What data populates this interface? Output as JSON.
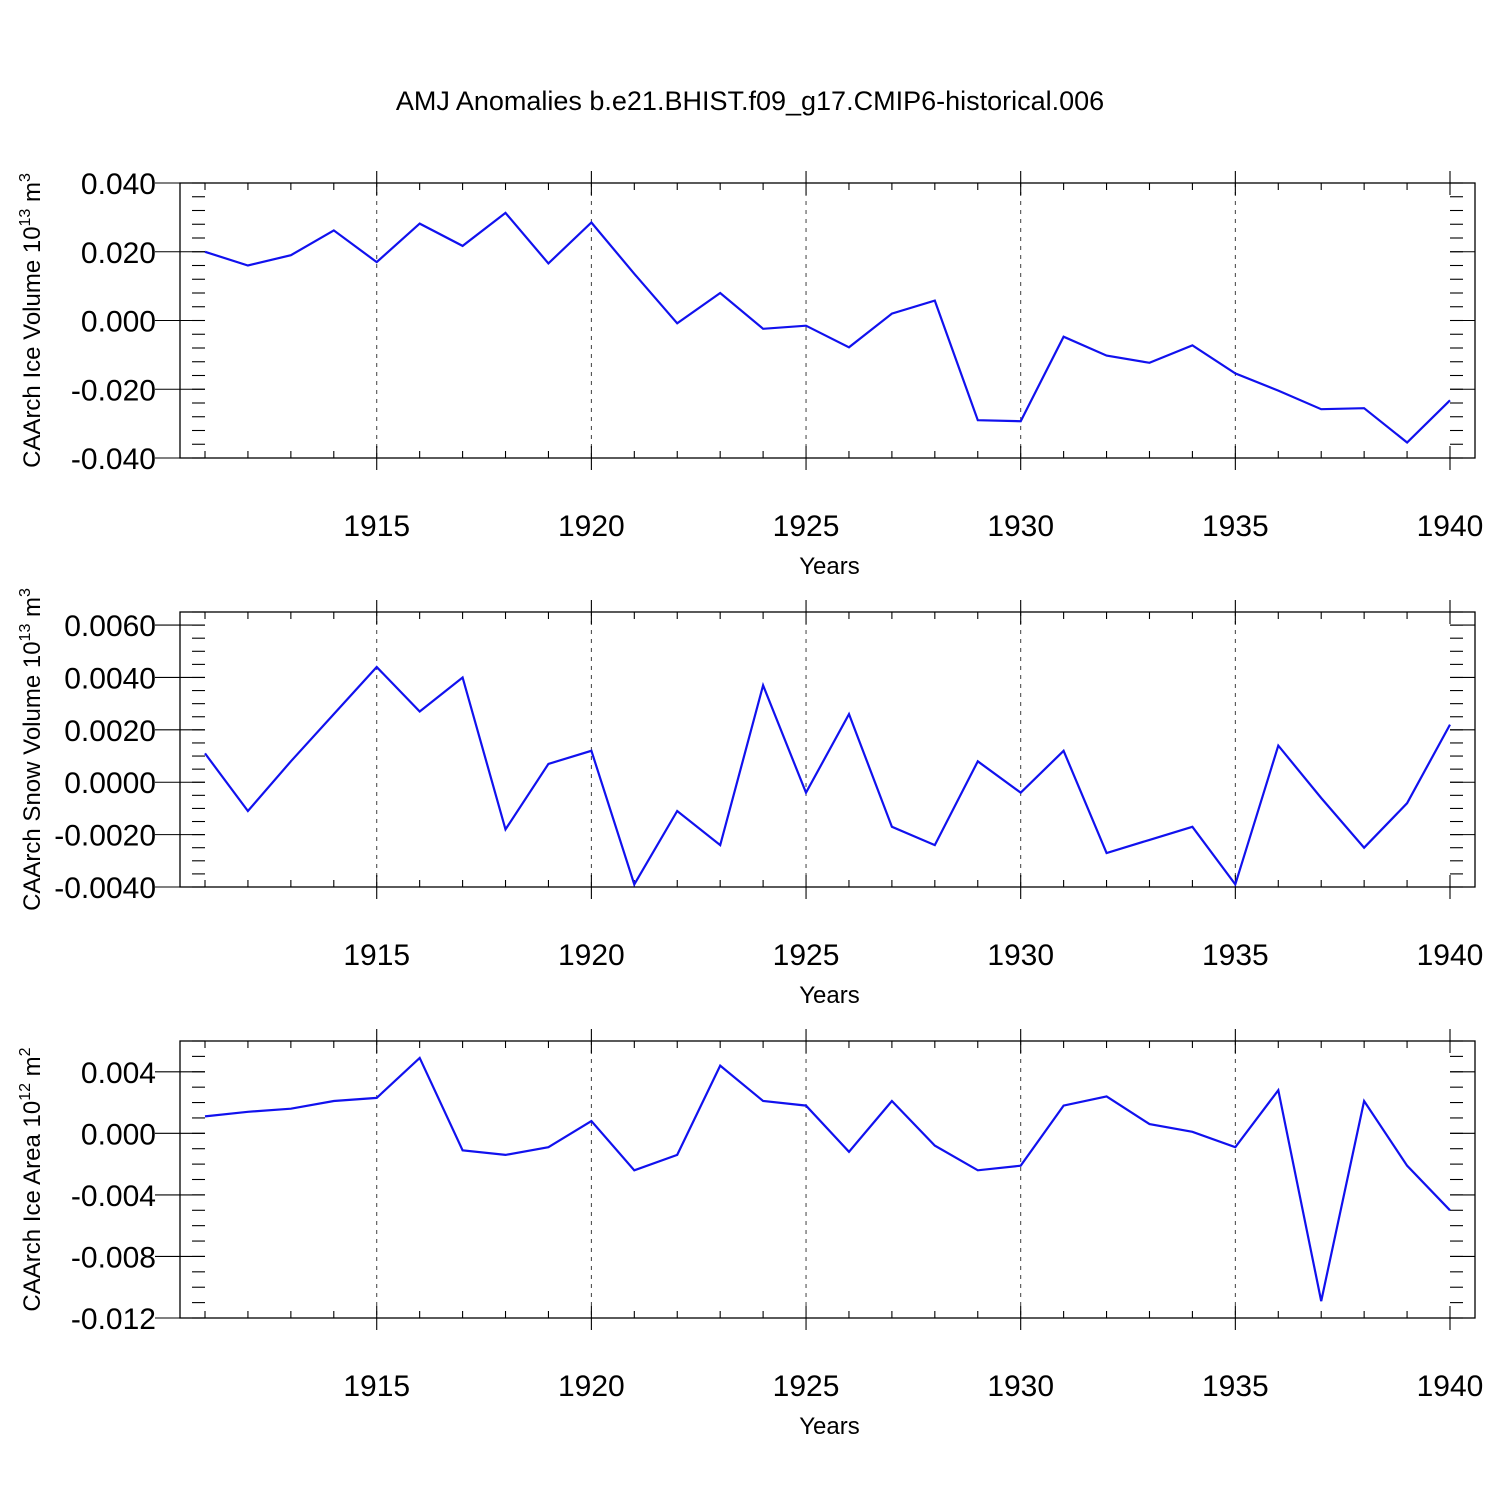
{
  "chart_data": {
    "title": "AMJ Anomalies b.e21.BHIST.f09_g17.CMIP6-historical.006",
    "colors": {
      "line": "#1111ee",
      "axes": "#000000",
      "background": "#ffffff"
    },
    "panels": [
      {
        "type": "line",
        "ylabel": "CAArch Ice Volume 10",
        "ylabel_exp": "13",
        "ylabel_unit": " m",
        "ylabel_unit_exp": "3",
        "xlabel": "Years",
        "xlim": [
          1911,
          1940
        ],
        "ylim": [
          -0.04,
          0.04
        ],
        "x_major_ticks": [
          1915,
          1920,
          1925,
          1930,
          1935,
          1940
        ],
        "x_tick_labels": [
          "1915",
          "1920",
          "1925",
          "1930",
          "1935",
          "1940"
        ],
        "y_major_ticks": [
          -0.04,
          -0.02,
          0.0,
          0.02,
          0.04
        ],
        "y_tick_labels": [
          "-0.040",
          "-0.020",
          "0.000",
          "0.020",
          "0.040"
        ],
        "y_minor_step": 0.004,
        "x": [
          1911,
          1912,
          1913,
          1914,
          1915,
          1916,
          1917,
          1918,
          1919,
          1920,
          1921,
          1922,
          1923,
          1924,
          1925,
          1926,
          1927,
          1928,
          1929,
          1930,
          1931,
          1932,
          1933,
          1934,
          1935,
          1936,
          1937,
          1938,
          1939,
          1940
        ],
        "values": [
          0.02,
          0.016,
          0.019,
          0.0262,
          0.017,
          0.0282,
          0.0217,
          0.0313,
          0.0166,
          0.0285,
          0.0136,
          -0.0008,
          0.008,
          -0.0024,
          -0.0015,
          -0.0078,
          0.002,
          0.0058,
          -0.029,
          -0.0293,
          -0.0047,
          -0.0102,
          -0.0123,
          -0.0072,
          -0.0154,
          -0.0204,
          -0.0258,
          -0.0255,
          -0.0355,
          -0.0232
        ]
      },
      {
        "type": "line",
        "ylabel": "CAArch Snow Volume 10",
        "ylabel_exp": "13",
        "ylabel_unit": " m",
        "ylabel_unit_exp": "3",
        "xlabel": "Years",
        "xlim": [
          1911,
          1940
        ],
        "ylim": [
          -0.004,
          0.0065
        ],
        "x_major_ticks": [
          1915,
          1920,
          1925,
          1930,
          1935,
          1940
        ],
        "x_tick_labels": [
          "1915",
          "1920",
          "1925",
          "1930",
          "1935",
          "1940"
        ],
        "y_major_ticks": [
          -0.004,
          -0.002,
          0.0,
          0.002,
          0.004,
          0.006
        ],
        "y_tick_labels": [
          "-0.0040",
          "-0.0020",
          "0.0000",
          "0.0020",
          "0.0040",
          "0.0060"
        ],
        "y_minor_step": 0.0005,
        "x": [
          1911,
          1912,
          1913,
          1914,
          1915,
          1916,
          1917,
          1918,
          1919,
          1920,
          1921,
          1922,
          1923,
          1924,
          1925,
          1926,
          1927,
          1928,
          1929,
          1930,
          1931,
          1932,
          1933,
          1934,
          1935,
          1936,
          1937,
          1938,
          1939,
          1940
        ],
        "values": [
          0.0011,
          -0.0011,
          0.0008,
          0.0026,
          0.0044,
          0.0027,
          0.004,
          -0.0018,
          0.0007,
          0.0012,
          -0.0039,
          -0.0011,
          -0.0024,
          0.0037,
          -0.0004,
          0.0026,
          -0.0017,
          -0.0024,
          0.0008,
          -0.0004,
          0.0012,
          -0.0027,
          -0.0022,
          -0.0017,
          -0.0039,
          0.0014,
          -0.0006,
          -0.0025,
          -0.0008,
          0.0022
        ]
      },
      {
        "type": "line",
        "ylabel": "CAArch Ice Area 10",
        "ylabel_exp": "12",
        "ylabel_unit": " m",
        "ylabel_unit_exp": "2",
        "xlabel": "Years",
        "xlim": [
          1911,
          1940
        ],
        "ylim": [
          -0.012,
          0.006
        ],
        "x_major_ticks": [
          1915,
          1920,
          1925,
          1930,
          1935,
          1940
        ],
        "x_tick_labels": [
          "1915",
          "1920",
          "1925",
          "1930",
          "1935",
          "1940"
        ],
        "y_major_ticks": [
          -0.012,
          -0.008,
          -0.004,
          0.0,
          0.004
        ],
        "y_tick_labels": [
          "-0.012",
          "-0.008",
          "-0.004",
          "0.000",
          "0.004"
        ],
        "y_minor_step": 0.001,
        "x": [
          1911,
          1912,
          1913,
          1914,
          1915,
          1916,
          1917,
          1918,
          1919,
          1920,
          1921,
          1922,
          1923,
          1924,
          1925,
          1926,
          1927,
          1928,
          1929,
          1930,
          1931,
          1932,
          1933,
          1934,
          1935,
          1936,
          1937,
          1938,
          1939,
          1940
        ],
        "values": [
          0.0011,
          0.0014,
          0.0016,
          0.0021,
          0.0023,
          0.0049,
          -0.0011,
          -0.0014,
          -0.0009,
          0.0008,
          -0.0024,
          -0.0014,
          0.0044,
          0.0021,
          0.0018,
          -0.0012,
          0.0021,
          -0.0008,
          -0.0024,
          -0.0021,
          0.0018,
          0.0024,
          0.0006,
          0.0001,
          -0.0009,
          0.0028,
          -0.0109,
          0.0021,
          -0.0021,
          -0.005
        ]
      }
    ]
  }
}
